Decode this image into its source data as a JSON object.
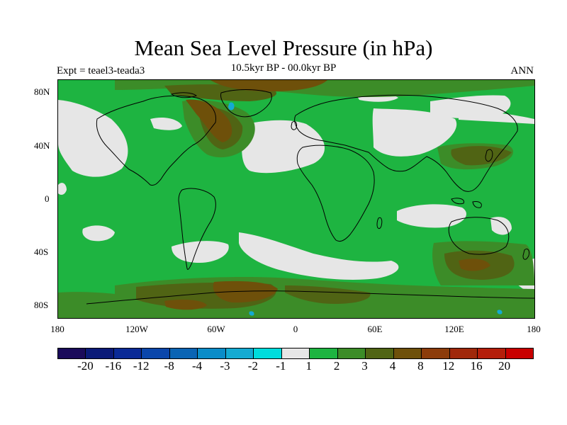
{
  "title": "Mean Sea Level Pressure (in hPa)",
  "subtitle_center": "10.5kyr BP - 00.0kyr BP",
  "subtitle_left": "Expt = teael3-teada3",
  "subtitle_right": "ANN",
  "lat_labels": [
    "80N",
    "40N",
    "0",
    "40S",
    "80S"
  ],
  "lon_labels": [
    "180",
    "120W",
    "60W",
    "0",
    "60E",
    "120E",
    "180"
  ],
  "colorbar": {
    "colors": [
      "#1a0a5a",
      "#0a1a78",
      "#0a2a96",
      "#0a46aa",
      "#0a64b4",
      "#0a8cc8",
      "#14aad2",
      "#00dcdc",
      "#e6e6e6",
      "#1eb441",
      "#3c8c28",
      "#506414",
      "#6e500a",
      "#8c3c0a",
      "#a0280a",
      "#b41e0a",
      "#c80000"
    ],
    "labels": [
      "-20",
      "-16",
      "-12",
      "-8",
      "-4",
      "-3",
      "-2",
      "-1",
      "1",
      "2",
      "3",
      "4",
      "8",
      "12",
      "16",
      "20"
    ]
  },
  "map_colors": {
    "ocean_base": "#1eb441",
    "light": "#e6e6e6",
    "dark_green": "#3c8c28",
    "olive": "#506414",
    "brown": "#6e500a",
    "cyan": "#14aad2"
  }
}
